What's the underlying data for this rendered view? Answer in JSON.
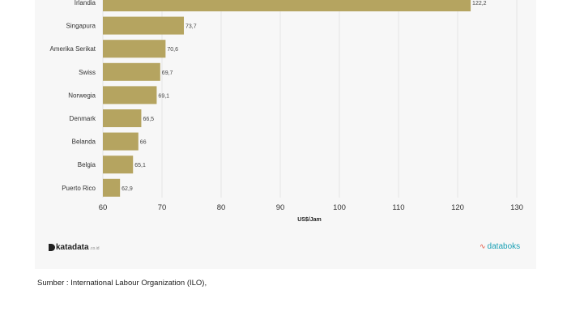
{
  "chart_data": {
    "type": "bar",
    "orientation": "horizontal",
    "categories": [
      "Irlandia",
      "Singapura",
      "Amerika Serikat",
      "Swiss",
      "Norwegia",
      "Denmark",
      "Belanda",
      "Belgia",
      "Puerto Rico"
    ],
    "values": [
      122.2,
      73.7,
      70.6,
      69.7,
      69.1,
      66.5,
      66,
      65.1,
      62.9
    ],
    "value_labels": [
      "122,2",
      "73,7",
      "70,6",
      "69,7",
      "69,1",
      "66,5",
      "66",
      "65,1",
      "62,9"
    ],
    "xlabel": "US$/Jam",
    "xlim": [
      60,
      130
    ],
    "x_ticks": [
      60,
      70,
      80,
      90,
      100,
      110,
      120,
      130
    ],
    "grid": "vertical",
    "bar_color": "#b5a460"
  },
  "logos": {
    "left": "katadata",
    "left_domain": ".co.id",
    "right": "databoks"
  },
  "source": "Sumber : International Labour Organization (ILO),"
}
